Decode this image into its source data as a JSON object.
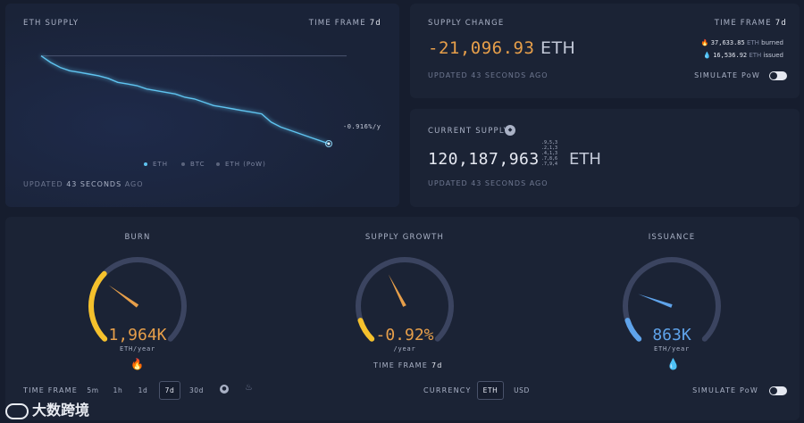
{
  "eth_supply": {
    "title": "ETH SUPPLY",
    "timeframe_label": "TIME FRAME",
    "timeframe_value": "7d",
    "end_value_label": "-0.916%/y",
    "legend": [
      "ETH",
      "BTC",
      "ETH (PoW)"
    ],
    "updated_prefix": "UPDATED",
    "updated_value": "43 SECONDS",
    "updated_suffix": "AGO"
  },
  "supply_change": {
    "title": "SUPPLY CHANGE",
    "timeframe_label": "TIME FRAME",
    "timeframe_value": "7d",
    "value": "-21,096.93",
    "unit": "ETH",
    "burned_value": "37,633.85",
    "burned_unit": "ETH",
    "burned_label": "burned",
    "issued_value": "16,536.92",
    "issued_unit": "ETH",
    "issued_label": "issued",
    "updated_text": "UPDATED 43 SECONDS AGO",
    "simulate_label": "SIMULATE PoW"
  },
  "current_supply": {
    "title": "CURRENT SUPPLY",
    "value": "120,187,963",
    "decimals": [
      ".9,5,3",
      ".2,1,3",
      ".4,1,3",
      ".7,8,6",
      ".7,9,4"
    ],
    "unit": "ETH",
    "updated_text": "UPDATED 43 SECONDS AGO"
  },
  "gauges": {
    "burn": {
      "title": "BURN",
      "value": "1,964K",
      "unit": "ETH/year",
      "fill_fraction": 0.33,
      "needle_fraction": 0.3
    },
    "growth": {
      "title": "SUPPLY GROWTH",
      "value": "-0.92%",
      "unit": "/year",
      "fill_fraction": 0.1,
      "needle_fraction": 0.4,
      "timeframe_label": "TIME FRAME",
      "timeframe_value": "7d"
    },
    "issuance": {
      "title": "ISSUANCE",
      "value": "863K",
      "unit": "ETH/year",
      "fill_fraction": 0.1,
      "needle_fraction": 0.24
    }
  },
  "bottom_bar": {
    "timeframe_label": "TIME FRAME",
    "timeframes": [
      "5m",
      "1h",
      "1d",
      "7d",
      "30d"
    ],
    "selected_timeframe": "7d",
    "currency_label": "CURRENCY",
    "currencies": [
      "ETH",
      "USD"
    ],
    "selected_currency": "ETH",
    "simulate_label": "SIMULATE PoW"
  },
  "watermark": {
    "text": "大数跨境"
  },
  "colors": {
    "background": "#161d2e",
    "panel": "#1b2335",
    "eth_line": "#5fc4f0",
    "burn_orange": "#e79f4a",
    "burn_yellow": "#f5c12c",
    "issuance_blue": "#5fa3ea",
    "track": "#3b4460"
  },
  "chart_data": {
    "type": "line",
    "series": [
      {
        "name": "ETH",
        "values": [
          0,
          -0.02,
          -0.035,
          -0.045,
          -0.05,
          -0.055,
          -0.06,
          -0.068,
          -0.08,
          -0.085,
          -0.09,
          -0.1,
          -0.105,
          -0.11,
          -0.115,
          -0.125,
          -0.13,
          -0.14,
          -0.15,
          -0.155,
          -0.16,
          -0.165,
          -0.17,
          -0.175,
          -0.2,
          -0.215,
          -0.225,
          -0.235,
          -0.245,
          -0.255,
          -0.265
        ]
      }
    ],
    "reference_level": 0,
    "ylim": [
      -0.3,
      0.05
    ],
    "grid": false,
    "legend": "bottom-center"
  }
}
